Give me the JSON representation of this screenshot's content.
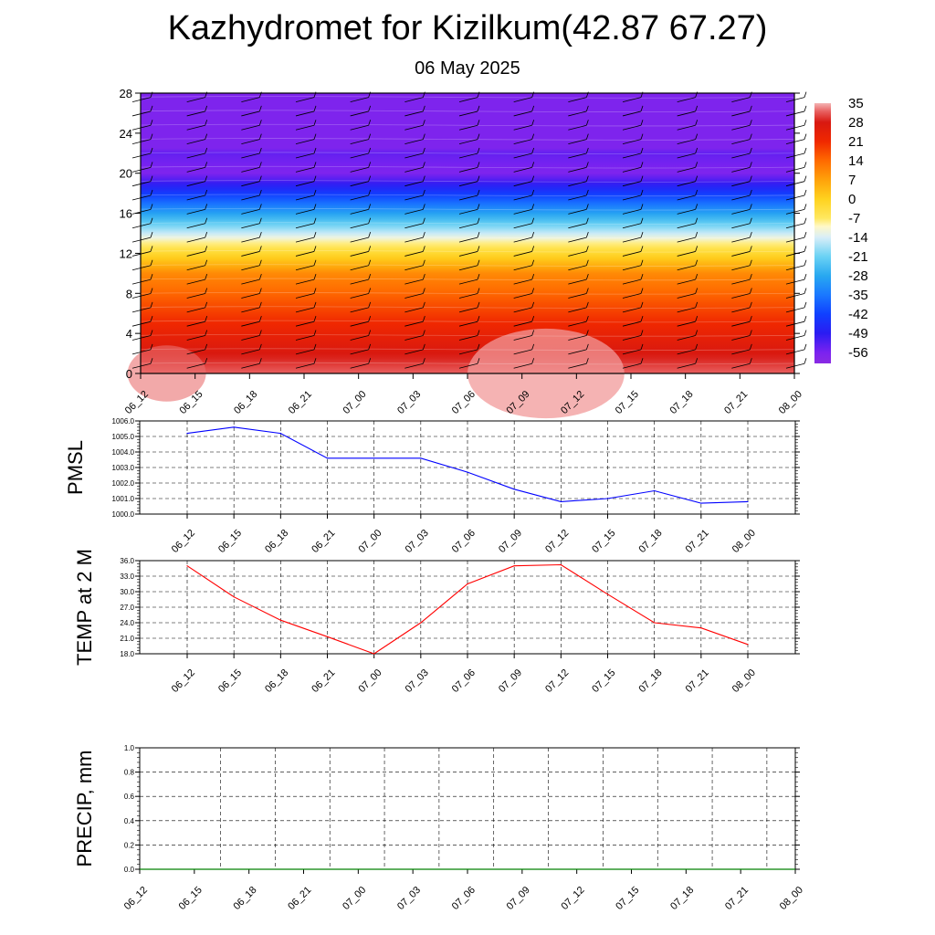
{
  "header": {
    "title": "Kazhydromet for Kizilkum(42.87 67.27)",
    "subtitle": "06 May 2025"
  },
  "chart_data": [
    {
      "type": "heatmap",
      "name": "temperature-height",
      "x_labels": [
        "06_12",
        "06_15",
        "06_18",
        "06_21",
        "07_00",
        "07_03",
        "07_06",
        "07_09",
        "07_12",
        "07_15",
        "07_18",
        "07_21",
        "08_00"
      ],
      "y_ticks": [
        0,
        4,
        8,
        12,
        16,
        20,
        24,
        28
      ],
      "ylim": [
        0,
        28
      ],
      "colorbar_labels": [
        35,
        28,
        21,
        14,
        7,
        0,
        -7,
        -14,
        -21,
        -28,
        -35,
        -42,
        -49,
        -56
      ],
      "colormap": [
        {
          "v": -60,
          "c": "#8a2be2"
        },
        {
          "v": -56,
          "c": "#7a22f0"
        },
        {
          "v": -49,
          "c": "#2a1cf2"
        },
        {
          "v": -42,
          "c": "#1040ff"
        },
        {
          "v": -35,
          "c": "#1a78ff"
        },
        {
          "v": -28,
          "c": "#28a8f0"
        },
        {
          "v": -21,
          "c": "#6ad2f4"
        },
        {
          "v": -14,
          "c": "#d8eef8"
        },
        {
          "v": -10,
          "c": "#fff8c8"
        },
        {
          "v": -7,
          "c": "#ffe860"
        },
        {
          "v": 0,
          "c": "#ffd21e"
        },
        {
          "v": 7,
          "c": "#ffa20a"
        },
        {
          "v": 14,
          "c": "#ff6a00"
        },
        {
          "v": 21,
          "c": "#f02800"
        },
        {
          "v": 28,
          "c": "#d81810"
        },
        {
          "v": 32,
          "c": "#e86060"
        },
        {
          "v": 35,
          "c": "#f4b4b4"
        }
      ],
      "grid": false
    },
    {
      "type": "line",
      "name": "pmsl",
      "ylabel": "PMSL",
      "ylim": [
        1000,
        1006
      ],
      "y_ticks": [
        "1000.0",
        "1001.0",
        "1002.0",
        "1003.0",
        "1004.0",
        "1005.0",
        "1006.0"
      ],
      "x_labels": [
        "06_12",
        "06_15",
        "06_18",
        "06_21",
        "07_00",
        "07_03",
        "07_06",
        "07_09",
        "07_12",
        "07_15",
        "07_18",
        "07_21",
        "08_00"
      ],
      "series": [
        {
          "values": [
            1005.2,
            1005.6,
            1005.2,
            1003.6,
            1003.6,
            1003.6,
            1002.7,
            1001.6,
            1000.8,
            1001.0,
            1001.5,
            1000.7,
            1000.8
          ],
          "color": "#0000ff"
        }
      ],
      "grid": true
    },
    {
      "type": "line",
      "name": "temp-2m",
      "ylabel": "TEMP at 2 M",
      "ylim": [
        18,
        36
      ],
      "y_ticks": [
        "18.0",
        "21.0",
        "24.0",
        "27.0",
        "30.0",
        "33.0",
        "36.0"
      ],
      "x_labels": [
        "06_12",
        "06_15",
        "06_18",
        "06_21",
        "07_00",
        "07_03",
        "07_06",
        "07_09",
        "07_12",
        "07_15",
        "07_18",
        "07_21",
        "08_00"
      ],
      "series": [
        {
          "values": [
            35.0,
            29.0,
            24.5,
            21.3,
            18.0,
            24.0,
            31.5,
            35.0,
            35.2,
            29.5,
            24.0,
            23.0,
            19.8
          ],
          "color": "#ff0000"
        }
      ],
      "grid": true
    },
    {
      "type": "line",
      "name": "precip",
      "ylabel": "PRECIP, mm",
      "ylim": [
        0,
        1
      ],
      "y_ticks": [
        "0.0",
        "0.2",
        "0.4",
        "0.6",
        "0.8",
        "1.0"
      ],
      "x_labels": [
        "06_12",
        "06_15",
        "06_18",
        "06_21",
        "07_00",
        "07_03",
        "07_06",
        "07_09",
        "07_12",
        "07_15",
        "07_18",
        "07_21",
        "08_00"
      ],
      "series": [
        {
          "values": [
            0,
            0,
            0,
            0,
            0,
            0,
            0,
            0,
            0,
            0,
            0,
            0,
            0
          ],
          "color": "#008000"
        }
      ],
      "grid": true
    }
  ]
}
